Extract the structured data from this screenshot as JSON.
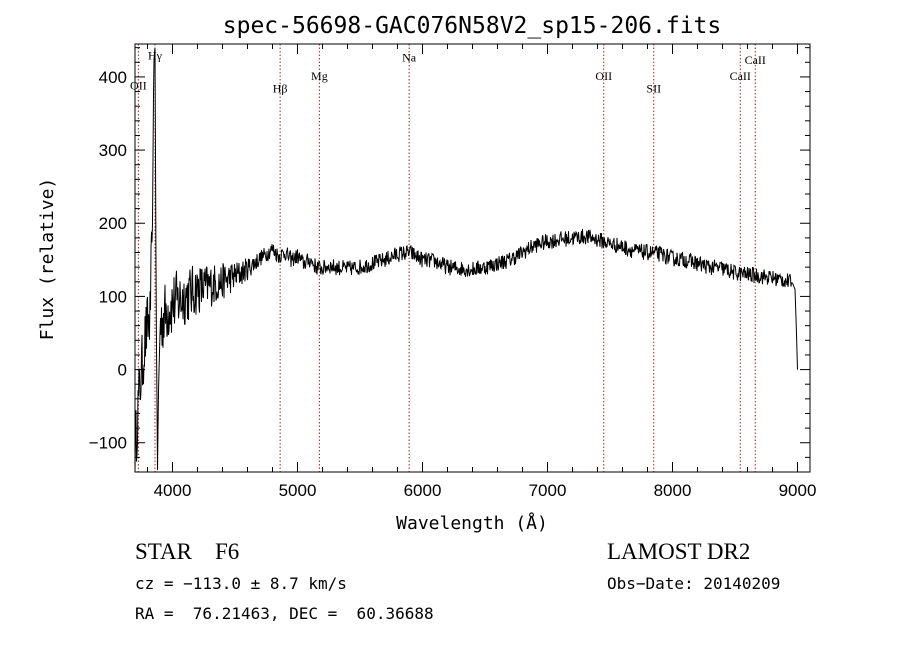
{
  "chart_data": {
    "type": "line",
    "title": "spec-56698-GAC076N58V2_sp15-206.fits",
    "xlabel": "Wavelength (Å)",
    "ylabel": "Flux (relative)",
    "xlim": [
      3700,
      9100
    ],
    "ylim": [
      -140,
      445
    ],
    "xticks": [
      4000,
      5000,
      6000,
      7000,
      8000,
      9000
    ],
    "xtick_labels": [
      "4000",
      "5000",
      "6000",
      "7000",
      "8000",
      "9000"
    ],
    "yticks": [
      -100,
      0,
      100,
      200,
      300,
      400
    ],
    "ytick_labels": [
      "−100",
      "0",
      "100",
      "200",
      "300",
      "400"
    ],
    "line_color": "#000000",
    "marker_color": "#b22222",
    "line_markers": [
      {
        "label": "OII",
        "x": 3727,
        "label_y": 383
      },
      {
        "label": "Hγ",
        "x": 3860,
        "label_y": 424
      },
      {
        "label": "Hβ",
        "x": 4861,
        "label_y": 379
      },
      {
        "label": "Mg",
        "x": 5175,
        "label_y": 396
      },
      {
        "label": "Na",
        "x": 5893,
        "label_y": 421
      },
      {
        "label": "OII",
        "x": 7450,
        "label_y": 396
      },
      {
        "label": "SII",
        "x": 7850,
        "label_y": 379
      },
      {
        "label": "CaII",
        "x": 8542,
        "label_y": 396
      },
      {
        "label": "CaII",
        "x": 8662,
        "label_y": 418
      }
    ],
    "series": [
      {
        "name": "spectrum",
        "x": [
          3700,
          3720,
          3740,
          3760,
          3780,
          3800,
          3820,
          3840,
          3850,
          3860,
          3870,
          3880,
          3900,
          3950,
          4000,
          4050,
          4100,
          4150,
          4200,
          4250,
          4300,
          4350,
          4400,
          4450,
          4500,
          4550,
          4600,
          4650,
          4700,
          4750,
          4800,
          4850,
          4900,
          4950,
          5000,
          5050,
          5100,
          5150,
          5200,
          5250,
          5300,
          5400,
          5500,
          5600,
          5700,
          5800,
          5900,
          6000,
          6100,
          6200,
          6300,
          6400,
          6500,
          6600,
          6700,
          6800,
          6900,
          7000,
          7100,
          7200,
          7300,
          7400,
          7500,
          7600,
          7700,
          7800,
          7900,
          8000,
          8100,
          8200,
          8300,
          8400,
          8500,
          8600,
          8700,
          8800,
          8900,
          8960,
          8980,
          8990,
          9000
        ],
        "y": [
          -120,
          -60,
          -20,
          10,
          40,
          60,
          70,
          200,
          420,
          440,
          70,
          -120,
          60,
          80,
          90,
          95,
          100,
          105,
          110,
          112,
          115,
          118,
          120,
          125,
          128,
          132,
          138,
          145,
          152,
          158,
          165,
          155,
          160,
          150,
          155,
          145,
          150,
          140,
          138,
          142,
          140,
          138,
          140,
          145,
          150,
          158,
          160,
          150,
          148,
          140,
          138,
          137,
          140,
          145,
          150,
          160,
          170,
          175,
          178,
          180,
          182,
          178,
          172,
          168,
          162,
          160,
          158,
          152,
          150,
          145,
          140,
          138,
          132,
          130,
          128,
          125,
          122,
          118,
          110,
          60,
          0
        ],
        "noise_amplitude": 22,
        "noise_blue_amplitude": 90
      }
    ]
  },
  "info": {
    "object_line": "STAR    F6",
    "survey": "LAMOST DR2",
    "cz_line": "cz = −113.0 ± 8.7 km/s",
    "obs_date_line": "Obs−Date: 20140209",
    "radec_line": "RA =  76.21463, DEC =  60.36688"
  }
}
